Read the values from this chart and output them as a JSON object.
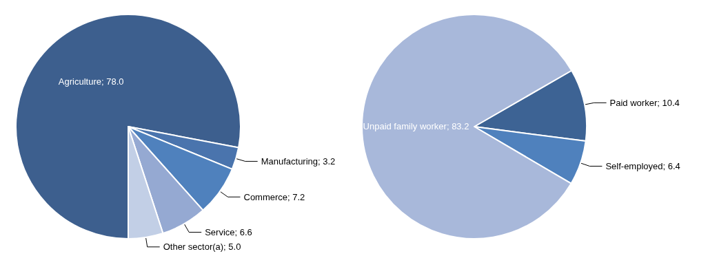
{
  "chart_data": [
    {
      "type": "pie",
      "categories": [
        "Agriculture",
        "Manufacturing",
        "Commerce",
        "Service",
        "Other sector(a)"
      ],
      "values": [
        78.0,
        3.2,
        7.2,
        6.6,
        5.0
      ],
      "value_labels": [
        "78.0",
        "3.2",
        "7.2",
        "6.6",
        "5.0"
      ],
      "colors": [
        "#3d5f8e",
        "#4a74ad",
        "#4f81bd",
        "#95a9d2",
        "#c2cfe6"
      ]
    },
    {
      "type": "pie",
      "categories": [
        "Paid worker",
        "Self-employed",
        "Unpaid family worker"
      ],
      "values": [
        10.4,
        6.4,
        83.2
      ],
      "value_labels": [
        "10.4",
        "6.4",
        "83.2"
      ],
      "colors": [
        "#3d6394",
        "#4f81bd",
        "#a8b8da"
      ]
    }
  ]
}
